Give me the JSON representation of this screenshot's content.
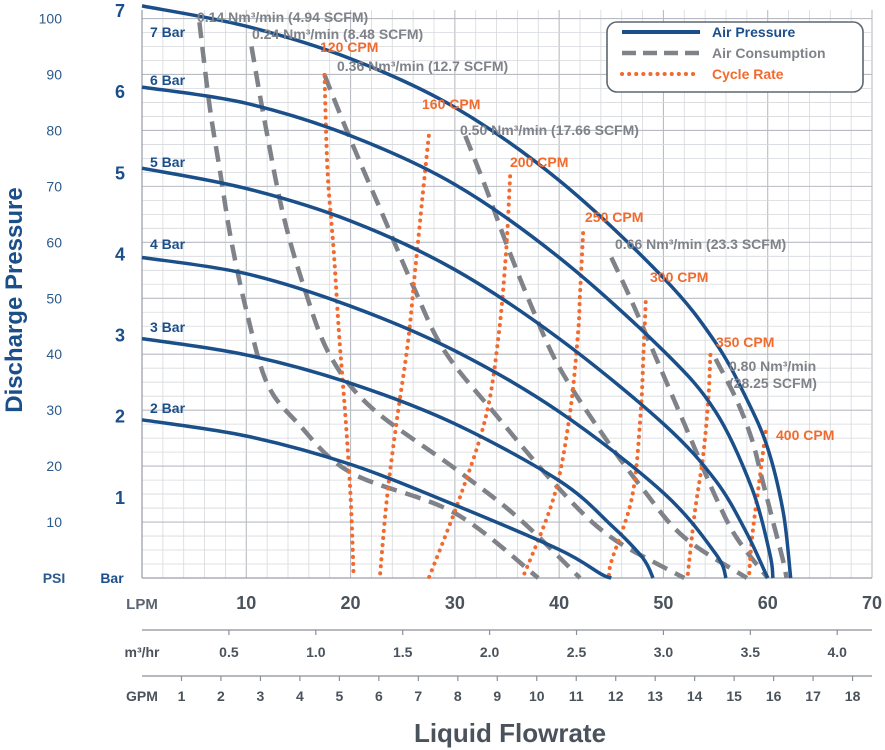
{
  "chart_data": {
    "type": "line",
    "y_title": "Discharge Pressure",
    "x_title": "Liquid Flowrate",
    "x_range_lpm": [
      0,
      70
    ],
    "y_range_bar": [
      0,
      7
    ],
    "grid": true,
    "legend_position": "top-right",
    "psi_axis": {
      "label": "PSI",
      "ticks": [
        "10",
        "20",
        "30",
        "40",
        "50",
        "60",
        "70",
        "80",
        "90",
        "100"
      ],
      "values": [
        10,
        20,
        30,
        40,
        50,
        60,
        70,
        80,
        90,
        100
      ]
    },
    "bar_axis": {
      "label": "Bar",
      "ticks": [
        "1",
        "2",
        "3",
        "4",
        "5",
        "6",
        "7"
      ],
      "values": [
        1,
        2,
        3,
        4,
        5,
        6,
        7
      ]
    },
    "lpm_axis": {
      "label": "LPM",
      "ticks": [
        "10",
        "20",
        "30",
        "40",
        "50",
        "60",
        "70"
      ],
      "values": [
        10,
        20,
        30,
        40,
        50,
        60,
        70
      ]
    },
    "m3hr_axis": {
      "label": "m³/hr",
      "ticks": [
        "0.5",
        "1.0",
        "1.5",
        "2.0",
        "2.5",
        "3.0",
        "3.5",
        "4.0"
      ],
      "values": [
        0.5,
        1.0,
        1.5,
        2.0,
        2.5,
        3.0,
        3.5,
        4.0
      ]
    },
    "gpm_axis": {
      "label": "GPM",
      "ticks": [
        "1",
        "2",
        "3",
        "4",
        "5",
        "6",
        "7",
        "8",
        "9",
        "10",
        "11",
        "12",
        "13",
        "14",
        "15",
        "16",
        "17",
        "18"
      ],
      "values": [
        1,
        2,
        3,
        4,
        5,
        6,
        7,
        8,
        9,
        10,
        11,
        12,
        13,
        14,
        15,
        16,
        17,
        18
      ]
    },
    "legend": [
      {
        "label": "Air Pressure",
        "style": "solid",
        "color": "#1b4f8a"
      },
      {
        "label": "Air Consumption",
        "style": "dashed",
        "color": "#7f8288"
      },
      {
        "label": "Cycle Rate",
        "style": "dotted",
        "color": "#f26a2e"
      }
    ],
    "air_pressure": [
      {
        "label": "7 Bar",
        "points": [
          [
            0,
            7.05
          ],
          [
            10,
            6.8
          ],
          [
            20,
            6.4
          ],
          [
            30,
            5.8
          ],
          [
            40,
            4.9
          ],
          [
            50,
            3.7
          ],
          [
            55,
            2.9
          ],
          [
            58,
            2.2
          ],
          [
            60,
            1.6
          ],
          [
            61.5,
            0.8
          ],
          [
            62.2,
            0.0
          ]
        ]
      },
      {
        "label": "6 Bar",
        "points": [
          [
            0,
            6.05
          ],
          [
            10,
            5.85
          ],
          [
            20,
            5.45
          ],
          [
            30,
            4.85
          ],
          [
            40,
            3.95
          ],
          [
            50,
            2.8
          ],
          [
            55,
            2.05
          ],
          [
            58.5,
            1.1
          ],
          [
            60.2,
            0.3
          ],
          [
            60.5,
            0.0
          ]
        ]
      },
      {
        "label": "5 Bar",
        "points": [
          [
            0,
            5.05
          ],
          [
            10,
            4.8
          ],
          [
            20,
            4.4
          ],
          [
            30,
            3.8
          ],
          [
            40,
            2.95
          ],
          [
            50,
            1.9
          ],
          [
            55,
            1.2
          ],
          [
            58,
            0.55
          ],
          [
            60,
            0.0
          ]
        ]
      },
      {
        "label": "4 Bar",
        "points": [
          [
            0,
            3.95
          ],
          [
            10,
            3.75
          ],
          [
            20,
            3.35
          ],
          [
            30,
            2.8
          ],
          [
            40,
            2.05
          ],
          [
            50,
            1.05
          ],
          [
            55,
            0.3
          ],
          [
            56,
            0.0
          ]
        ]
      },
      {
        "label": "3 Bar",
        "points": [
          [
            0,
            2.95
          ],
          [
            10,
            2.75
          ],
          [
            20,
            2.4
          ],
          [
            30,
            1.9
          ],
          [
            40,
            1.2
          ],
          [
            45,
            0.65
          ],
          [
            48,
            0.25
          ],
          [
            49,
            0.0
          ]
        ]
      },
      {
        "label": "2 Bar",
        "points": [
          [
            0,
            1.95
          ],
          [
            10,
            1.75
          ],
          [
            20,
            1.4
          ],
          [
            30,
            0.9
          ],
          [
            40,
            0.35
          ],
          [
            44,
            0.05
          ],
          [
            45,
            0.0
          ]
        ]
      }
    ],
    "air_consumption": [
      {
        "label": "0.14 Nm³/min (4.94 SCFM)",
        "points": [
          [
            5.5,
            6.85
          ],
          [
            6.5,
            5.8
          ],
          [
            7.5,
            5.0
          ],
          [
            8.5,
            4.2
          ],
          [
            10,
            3.3
          ],
          [
            12,
            2.4
          ],
          [
            15,
            1.9
          ],
          [
            20,
            1.3
          ],
          [
            30,
            0.8
          ],
          [
            38,
            0.0
          ]
        ]
      },
      {
        "label": "0.24 Nm³/min (8.48 SCFM)",
        "points": [
          [
            10.5,
            6.55
          ],
          [
            11.8,
            5.6
          ],
          [
            13.5,
            4.5
          ],
          [
            15.5,
            3.6
          ],
          [
            18,
            2.75
          ],
          [
            22,
            2.1
          ],
          [
            30,
            1.35
          ],
          [
            36,
            0.75
          ],
          [
            42,
            0.0
          ]
        ]
      },
      {
        "label": "0.36 Nm³/min (12.7 SCFM)",
        "points": [
          [
            17.5,
            6.2
          ],
          [
            20,
            5.4
          ],
          [
            23,
            4.5
          ],
          [
            26,
            3.6
          ],
          [
            29,
            2.8
          ],
          [
            34,
            2.0
          ],
          [
            40,
            1.1
          ],
          [
            45,
            0.5
          ],
          [
            52,
            0.0
          ]
        ]
      },
      {
        "label": "0.50 Nm³/min (17.66 SCFM)",
        "points": [
          [
            31,
            5.45
          ],
          [
            33,
            4.8
          ],
          [
            35,
            4.1
          ],
          [
            37.5,
            3.3
          ],
          [
            40,
            2.6
          ],
          [
            44,
            1.8
          ],
          [
            48,
            1.1
          ],
          [
            52,
            0.5
          ],
          [
            58,
            0.0
          ]
        ]
      },
      {
        "label": "0.66 Nm³/min (23.3 SCFM)",
        "points": [
          [
            45,
            3.95
          ],
          [
            47,
            3.4
          ],
          [
            49,
            2.8
          ],
          [
            51,
            2.2
          ],
          [
            53,
            1.6
          ],
          [
            55,
            1.0
          ],
          [
            57,
            0.5
          ],
          [
            60,
            0.0
          ]
        ]
      },
      {
        "label": "0.80 Nm³/min (28.25 SCFM)",
        "points": [
          [
            55,
            2.7
          ],
          [
            57,
            2.2
          ],
          [
            58.5,
            1.7
          ],
          [
            59.5,
            1.2
          ],
          [
            60.5,
            0.7
          ],
          [
            61.5,
            0.2
          ],
          [
            61.8,
            0.0
          ]
        ]
      }
    ],
    "cycle_rate": [
      {
        "label": "120 CPM",
        "points": [
          [
            17.5,
            6.2
          ],
          [
            17.8,
            5.0
          ],
          [
            18.4,
            4.0
          ],
          [
            18.9,
            3.0
          ],
          [
            19.5,
            2.0
          ],
          [
            20,
            1.0
          ],
          [
            20.3,
            0.0
          ]
        ]
      },
      {
        "label": "160 CPM",
        "points": [
          [
            27.5,
            5.45
          ],
          [
            26.9,
            4.7
          ],
          [
            26.2,
            3.8
          ],
          [
            25.5,
            2.9
          ],
          [
            24.5,
            2.0
          ],
          [
            23.5,
            1.0
          ],
          [
            22.8,
            0.0
          ]
        ]
      },
      {
        "label": "200 CPM",
        "points": [
          [
            35.3,
            4.95
          ],
          [
            34.9,
            4.0
          ],
          [
            34.2,
            3.0
          ],
          [
            33.0,
            2.0
          ],
          [
            30.5,
            1.0
          ],
          [
            27.5,
            0.0
          ]
        ]
      },
      {
        "label": "250 CPM",
        "points": [
          [
            42.3,
            4.25
          ],
          [
            42.0,
            3.5
          ],
          [
            41.8,
            3.0
          ],
          [
            41.0,
            2.0
          ],
          [
            39.5,
            1.0
          ],
          [
            36.5,
            0.0
          ]
        ]
      },
      {
        "label": "300 CPM",
        "points": [
          [
            48.3,
            3.4
          ],
          [
            48.1,
            2.8
          ],
          [
            47.8,
            2.0
          ],
          [
            47.0,
            1.0
          ],
          [
            45.0,
            0.2
          ],
          [
            44.8,
            0.0
          ]
        ]
      },
      {
        "label": "350 CPM",
        "points": [
          [
            54.5,
            2.75
          ],
          [
            54.3,
            2.2
          ],
          [
            53.8,
            1.5
          ],
          [
            53.0,
            0.8
          ],
          [
            52.3,
            0.0
          ]
        ]
      },
      {
        "label": "400 CPM",
        "points": [
          [
            59.8,
            1.8
          ],
          [
            59.2,
            1.2
          ],
          [
            58.5,
            0.5
          ],
          [
            58.2,
            0.0
          ]
        ]
      }
    ]
  }
}
